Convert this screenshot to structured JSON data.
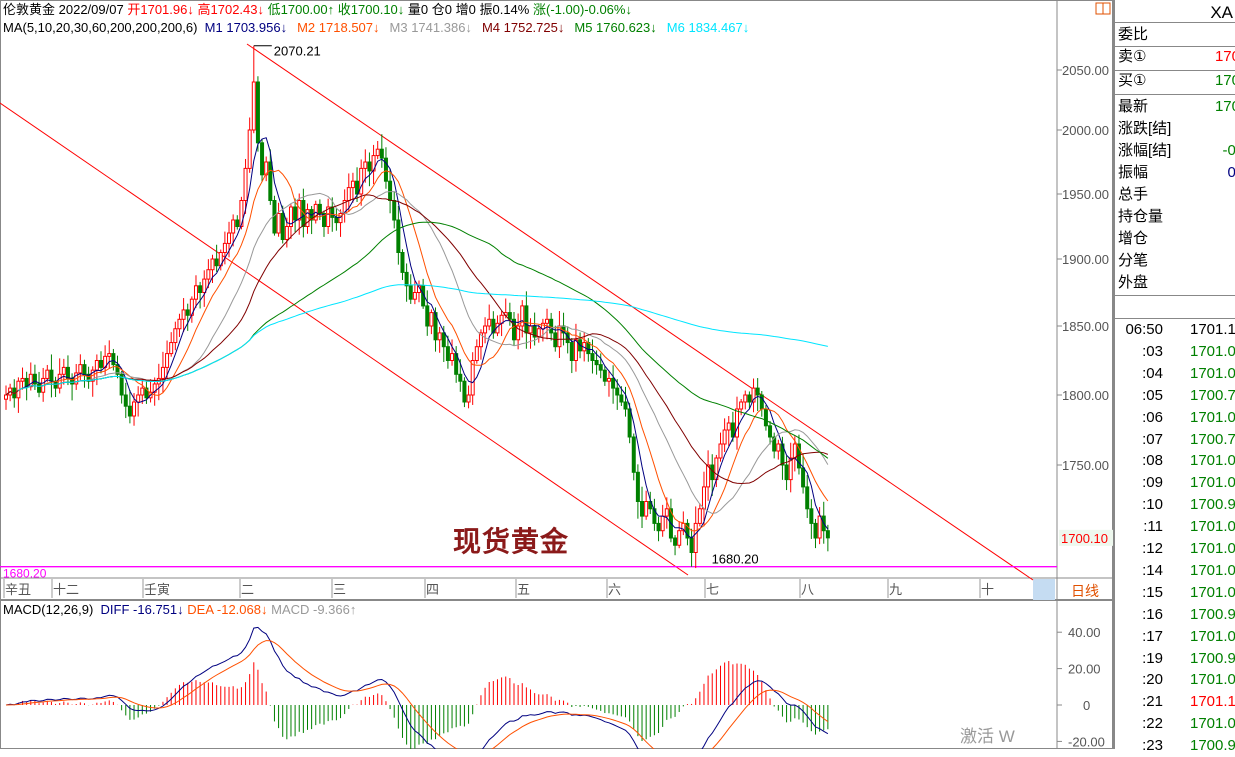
{
  "header": {
    "symbol": "伦敦黄金",
    "date": "2022/09/07",
    "open_label": "开",
    "open": "1701.96↓",
    "high_label": "高",
    "high": "1702.43↓",
    "low_label": "低",
    "low": "1700.00↑",
    "close_label": "收",
    "close": "1700.10↓",
    "volume": "量0",
    "position": "仓0",
    "increase": "增0",
    "amplitude": "振0.14%",
    "change": "涨(-1.00)-0.06%↓"
  },
  "ma": {
    "label": "MA(5,10,20,30,60,200,200,200,6)",
    "items": [
      {
        "name": "M1",
        "value": "1703.956↓",
        "color": "#000080"
      },
      {
        "name": "M2",
        "value": "1718.507↓",
        "color": "#ff5000"
      },
      {
        "name": "M3",
        "value": "1741.386↓",
        "color": "#999999"
      },
      {
        "name": "M4",
        "value": "1752.725↓",
        "color": "#800000"
      },
      {
        "name": "M5",
        "value": "1760.623↓",
        "color": "#008000"
      },
      {
        "name": "M6",
        "value": "1834.467↓",
        "color": "#00e5ff"
      }
    ]
  },
  "watermark_title": "现货黄金",
  "period_label": "日线",
  "macd": {
    "label": "MACD(12,26,9)",
    "diff": "DIFF -16.751↓",
    "dea": "DEA -12.068↓",
    "macd": "MACD -9.366↑"
  },
  "right_panel": {
    "symbol": "XA",
    "rows": [
      {
        "label": "委比",
        "value": ""
      },
      {
        "label": "卖①",
        "value": "170",
        "color": "#ff0000"
      },
      {
        "label": "买①",
        "value": "170",
        "color": "#008000"
      },
      {
        "label": "最新",
        "value": "170",
        "color": "#008000"
      },
      {
        "label": "涨跌[结]",
        "value": "-",
        "color": "#008000"
      },
      {
        "label": "涨幅[结]",
        "value": "-0.",
        "color": "#008000"
      },
      {
        "label": "振幅",
        "value": "0.",
        "color": "#000080"
      },
      {
        "label": "总手",
        "value": ""
      },
      {
        "label": "持仓量",
        "value": ""
      },
      {
        "label": "增仓",
        "value": ""
      },
      {
        "label": "分笔",
        "value": "-"
      },
      {
        "label": "外盘",
        "value": ""
      }
    ],
    "ticks": [
      {
        "time": "06:50",
        "price": "1701.1",
        "color": "#000000"
      },
      {
        "time": ":03",
        "price": "1701.0",
        "color": "#008000"
      },
      {
        "time": ":04",
        "price": "1701.0",
        "color": "#008000"
      },
      {
        "time": ":05",
        "price": "1700.7",
        "color": "#008000"
      },
      {
        "time": ":06",
        "price": "1701.0",
        "color": "#008000"
      },
      {
        "time": ":07",
        "price": "1700.7",
        "color": "#008000"
      },
      {
        "time": ":08",
        "price": "1701.0",
        "color": "#008000"
      },
      {
        "time": ":09",
        "price": "1701.0",
        "color": "#008000"
      },
      {
        "time": ":10",
        "price": "1700.9",
        "color": "#008000"
      },
      {
        "time": ":11",
        "price": "1701.0",
        "color": "#008000"
      },
      {
        "time": ":12",
        "price": "1701.0",
        "color": "#008000"
      },
      {
        "time": ":14",
        "price": "1701.0",
        "color": "#008000"
      },
      {
        "time": ":15",
        "price": "1701.0",
        "color": "#008000"
      },
      {
        "time": ":16",
        "price": "1700.9",
        "color": "#008000"
      },
      {
        "time": ":17",
        "price": "1701.0",
        "color": "#008000"
      },
      {
        "time": ":19",
        "price": "1700.9",
        "color": "#008000"
      },
      {
        "time": ":20",
        "price": "1701.0",
        "color": "#008000"
      },
      {
        "time": ":21",
        "price": "1701.1",
        "color": "#ff0000"
      },
      {
        "time": ":22",
        "price": "1701.0",
        "color": "#008000"
      },
      {
        "time": ":23",
        "price": "1700.9",
        "color": "#008000"
      }
    ],
    "os_watermark": "激活 W"
  },
  "chart_data": {
    "type": "candlestick",
    "y_ticks": [
      "2050.00",
      "2000.00",
      "1950.00",
      "1900.00",
      "1850.00",
      "1800.00",
      "1750.00"
    ],
    "last_price_label": "1700.10",
    "x_ticks": [
      "辛丑",
      "十二",
      "壬寅",
      "二",
      "三",
      "四",
      "五",
      "六",
      "七",
      "八",
      "九",
      "十"
    ],
    "high_mark": {
      "label": "2070.21",
      "value": 2070.21
    },
    "low_mark": {
      "label": "1680.20",
      "value": 1680.2
    },
    "support_line": {
      "label": "1680.20",
      "value": 1680.2,
      "color": "#ff00ff"
    },
    "up_color": "#ff0000",
    "down_color": "#008000",
    "ma_periods": [
      5,
      10,
      20,
      30,
      60,
      200
    ],
    "closes": [
      1800,
      1805,
      1798,
      1810,
      1812,
      1806,
      1815,
      1808,
      1802,
      1812,
      1818,
      1810,
      1805,
      1815,
      1820,
      1812,
      1808,
      1816,
      1822,
      1815,
      1810,
      1818,
      1825,
      1820,
      1828,
      1830,
      1822,
      1815,
      1800,
      1792,
      1785,
      1795,
      1800,
      1805,
      1798,
      1802,
      1808,
      1812,
      1820,
      1830,
      1838,
      1848,
      1855,
      1862,
      1858,
      1870,
      1880,
      1875,
      1885,
      1892,
      1900,
      1895,
      1905,
      1912,
      1920,
      1930,
      1925,
      1945,
      1970,
      2000,
      2040,
      1990,
      1965,
      1975,
      1945,
      1920,
      1935,
      1915,
      1925,
      1940,
      1930,
      1945,
      1925,
      1938,
      1930,
      1942,
      1935,
      1925,
      1940,
      1932,
      1928,
      1935,
      1945,
      1955,
      1960,
      1950,
      1970,
      1975,
      1968,
      1980,
      1985,
      1978,
      1960,
      1945,
      1930,
      1905,
      1890,
      1880,
      1870,
      1875,
      1880,
      1865,
      1850,
      1860,
      1840,
      1845,
      1835,
      1825,
      1830,
      1815,
      1810,
      1795,
      1800,
      1825,
      1835,
      1845,
      1850,
      1855,
      1845,
      1852,
      1858,
      1860,
      1855,
      1840,
      1850,
      1865,
      1845,
      1850,
      1842,
      1848,
      1852,
      1855,
      1845,
      1835,
      1850,
      1845,
      1838,
      1825,
      1840,
      1832,
      1838,
      1830,
      1825,
      1822,
      1818,
      1810,
      1812,
      1805,
      1800,
      1795,
      1790,
      1770,
      1745,
      1725,
      1715,
      1725,
      1720,
      1710,
      1705,
      1715,
      1720,
      1700,
      1695,
      1705,
      1710,
      1700,
      1690,
      1710,
      1720,
      1735,
      1750,
      1740,
      1755,
      1765,
      1775,
      1780,
      1770,
      1790,
      1795,
      1800,
      1795,
      1805,
      1800,
      1790,
      1778,
      1770,
      1760,
      1765,
      1750,
      1740,
      1755,
      1765,
      1748,
      1735,
      1720,
      1710,
      1700,
      1715,
      1705,
      1700.1
    ],
    "macd_ticks": [
      "40.00",
      "20.00",
      "0",
      "-20.00"
    ]
  }
}
